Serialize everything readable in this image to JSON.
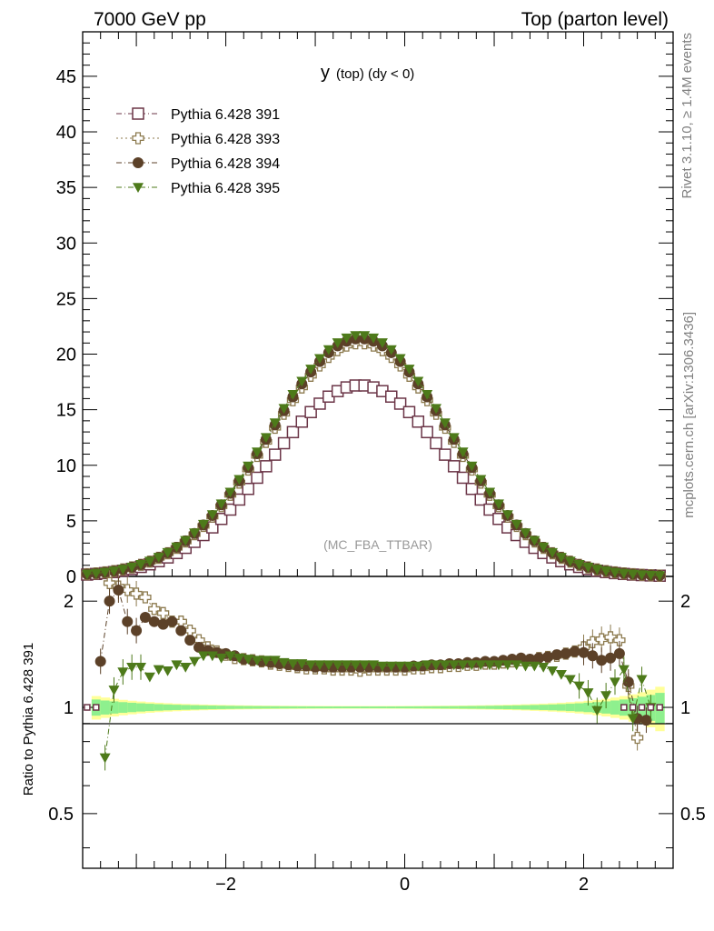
{
  "header": {
    "left": "7000 GeV pp",
    "right": "Top (parton level)"
  },
  "side_labels": {
    "rivet": "Rivet 3.1.10, ≥ 1.4M events",
    "mcplots": "mcplots.cern.ch [arXiv:1306.3436]"
  },
  "chart_data": [
    {
      "type": "line",
      "title_main": "y",
      "title_sub": "(top) (dy < 0)",
      "watermark": "(MC_FBA_TTBAR)",
      "xlim": [
        -3.6,
        3.0
      ],
      "ylim": [
        0,
        49
      ],
      "yticks": [
        0,
        5,
        10,
        15,
        20,
        25,
        30,
        35,
        40,
        45
      ],
      "ytick_labels": [
        "0",
        "5",
        "10",
        "15",
        "20",
        "25",
        "30",
        "35",
        "40",
        "45"
      ],
      "legend_position": "top-left",
      "series": [
        {
          "name": "Pythia 6.428 391",
          "color": "#6b3547",
          "marker": "open-square",
          "style": "dash-dot",
          "peak": 17.2,
          "center": -0.5,
          "sigma": 1.0
        },
        {
          "name": "Pythia 6.428 393",
          "color": "#8c7a4e",
          "marker": "open-cross",
          "style": "dotted",
          "peak": 21.0,
          "center": -0.5,
          "sigma": 1.0
        },
        {
          "name": "Pythia 6.428 394",
          "color": "#5c4128",
          "marker": "filled-circle",
          "style": "dash-dot",
          "peak": 21.4,
          "center": -0.5,
          "sigma": 1.0
        },
        {
          "name": "Pythia 6.428 395",
          "color": "#4d7a1a",
          "marker": "filled-triangle-down",
          "style": "dash-dot",
          "peak": 21.7,
          "center": -0.5,
          "sigma": 1.0
        }
      ]
    },
    {
      "type": "line",
      "ylabel": "Ratio to Pythia 6.428 391",
      "xlim": [
        -3.6,
        3.0
      ],
      "ylim": [
        0.35,
        2.35
      ],
      "yticks": [
        0.5,
        1,
        2
      ],
      "ytick_labels": [
        "0.5",
        "1",
        "2"
      ],
      "xticks": [
        -2,
        0,
        2
      ],
      "xtick_labels": [
        "−2",
        "0",
        "2"
      ],
      "reference": 1,
      "band_colors": {
        "inner": "#8ef08e",
        "outer": "#ffff99"
      },
      "series": [
        {
          "name": "Pythia 6.428 393",
          "x": [
            -3.3,
            -3.2,
            -3.1,
            -3.0,
            -2.9,
            -2.8,
            -2.7,
            -2.6,
            -2.5,
            -2.4,
            -2.3,
            -2.2,
            -2.1,
            -2.0,
            -1.9,
            -1.8,
            -1.7,
            -1.6,
            -1.5,
            -1.4,
            -1.3,
            -1.2,
            -1.1,
            -1.0,
            -0.9,
            -0.8,
            -0.7,
            -0.6,
            -0.5,
            -0.4,
            -0.3,
            -0.2,
            -0.1,
            0.0,
            0.1,
            0.2,
            0.3,
            0.4,
            0.5,
            0.6,
            0.7,
            0.8,
            0.9,
            1.0,
            1.1,
            1.2,
            1.3,
            1.4,
            1.5,
            1.6,
            1.7,
            1.8,
            1.9,
            2.0,
            2.1,
            2.2,
            2.3,
            2.4,
            2.5,
            2.6
          ],
          "values": [
            2.25,
            2.2,
            2.15,
            2.1,
            2.05,
            1.9,
            1.85,
            1.75,
            1.75,
            1.65,
            1.55,
            1.48,
            1.44,
            1.41,
            1.38,
            1.37,
            1.36,
            1.35,
            1.33,
            1.32,
            1.31,
            1.3,
            1.29,
            1.29,
            1.29,
            1.28,
            1.28,
            1.28,
            1.27,
            1.28,
            1.28,
            1.28,
            1.28,
            1.28,
            1.29,
            1.29,
            1.3,
            1.3,
            1.31,
            1.31,
            1.32,
            1.32,
            1.33,
            1.33,
            1.34,
            1.35,
            1.36,
            1.36,
            1.38,
            1.39,
            1.4,
            1.42,
            1.44,
            1.48,
            1.53,
            1.56,
            1.58,
            1.55,
            1.15,
            0.82
          ]
        },
        {
          "name": "Pythia 6.428 394",
          "x": [
            -3.4,
            -3.3,
            -3.2,
            -3.1,
            -3.0,
            -2.9,
            -2.8,
            -2.7,
            -2.6,
            -2.5,
            -2.4,
            -2.3,
            -2.2,
            -2.1,
            -2.0,
            -1.9,
            -1.8,
            -1.7,
            -1.6,
            -1.5,
            -1.4,
            -1.3,
            -1.2,
            -1.1,
            -1.0,
            -0.9,
            -0.8,
            -0.7,
            -0.6,
            -0.5,
            -0.4,
            -0.3,
            -0.2,
            -0.1,
            0.0,
            0.1,
            0.2,
            0.3,
            0.4,
            0.5,
            0.6,
            0.7,
            0.8,
            0.9,
            1.0,
            1.1,
            1.2,
            1.3,
            1.4,
            1.5,
            1.6,
            1.7,
            1.8,
            1.9,
            2.0,
            2.1,
            2.2,
            2.3,
            2.4,
            2.5,
            2.6,
            2.7
          ],
          "values": [
            1.35,
            2.0,
            2.15,
            1.75,
            1.65,
            1.8,
            1.75,
            1.72,
            1.75,
            1.65,
            1.55,
            1.48,
            1.45,
            1.43,
            1.42,
            1.4,
            1.37,
            1.36,
            1.35,
            1.34,
            1.33,
            1.32,
            1.31,
            1.31,
            1.3,
            1.3,
            1.3,
            1.3,
            1.3,
            1.3,
            1.3,
            1.3,
            1.3,
            1.3,
            1.3,
            1.31,
            1.31,
            1.32,
            1.32,
            1.33,
            1.33,
            1.34,
            1.34,
            1.35,
            1.35,
            1.36,
            1.37,
            1.38,
            1.37,
            1.38,
            1.39,
            1.41,
            1.42,
            1.44,
            1.43,
            1.4,
            1.36,
            1.38,
            1.42,
            1.18,
            0.93,
            0.92
          ]
        },
        {
          "name": "Pythia 6.428 395",
          "x": [
            -3.35,
            -3.25,
            -3.15,
            -3.05,
            -2.95,
            -2.85,
            -2.75,
            -2.65,
            -2.55,
            -2.45,
            -2.35,
            -2.25,
            -2.15,
            -2.05,
            -1.95,
            -1.85,
            -1.75,
            -1.65,
            -1.55,
            -1.45,
            -1.35,
            -1.25,
            -1.15,
            -1.05,
            -0.95,
            -0.85,
            -0.75,
            -0.65,
            -0.55,
            -0.45,
            -0.35,
            -0.25,
            -0.15,
            -0.05,
            0.05,
            0.15,
            0.25,
            0.35,
            0.45,
            0.55,
            0.65,
            0.75,
            0.85,
            0.95,
            1.05,
            1.15,
            1.25,
            1.35,
            1.45,
            1.55,
            1.65,
            1.75,
            1.85,
            1.95,
            2.05,
            2.15,
            2.25,
            2.35,
            2.45,
            2.55,
            2.65,
            2.75
          ],
          "values": [
            0.72,
            1.12,
            1.26,
            1.3,
            1.3,
            1.22,
            1.28,
            1.27,
            1.32,
            1.3,
            1.35,
            1.4,
            1.4,
            1.38,
            1.4,
            1.38,
            1.37,
            1.36,
            1.36,
            1.36,
            1.34,
            1.33,
            1.33,
            1.32,
            1.32,
            1.32,
            1.32,
            1.32,
            1.32,
            1.32,
            1.32,
            1.31,
            1.31,
            1.31,
            1.31,
            1.31,
            1.32,
            1.32,
            1.32,
            1.32,
            1.32,
            1.32,
            1.32,
            1.32,
            1.32,
            1.32,
            1.32,
            1.31,
            1.31,
            1.3,
            1.27,
            1.24,
            1.2,
            1.15,
            1.1,
            0.98,
            1.08,
            1.18,
            1.28,
            0.93,
            1.2,
            1.0
          ]
        }
      ]
    }
  ]
}
